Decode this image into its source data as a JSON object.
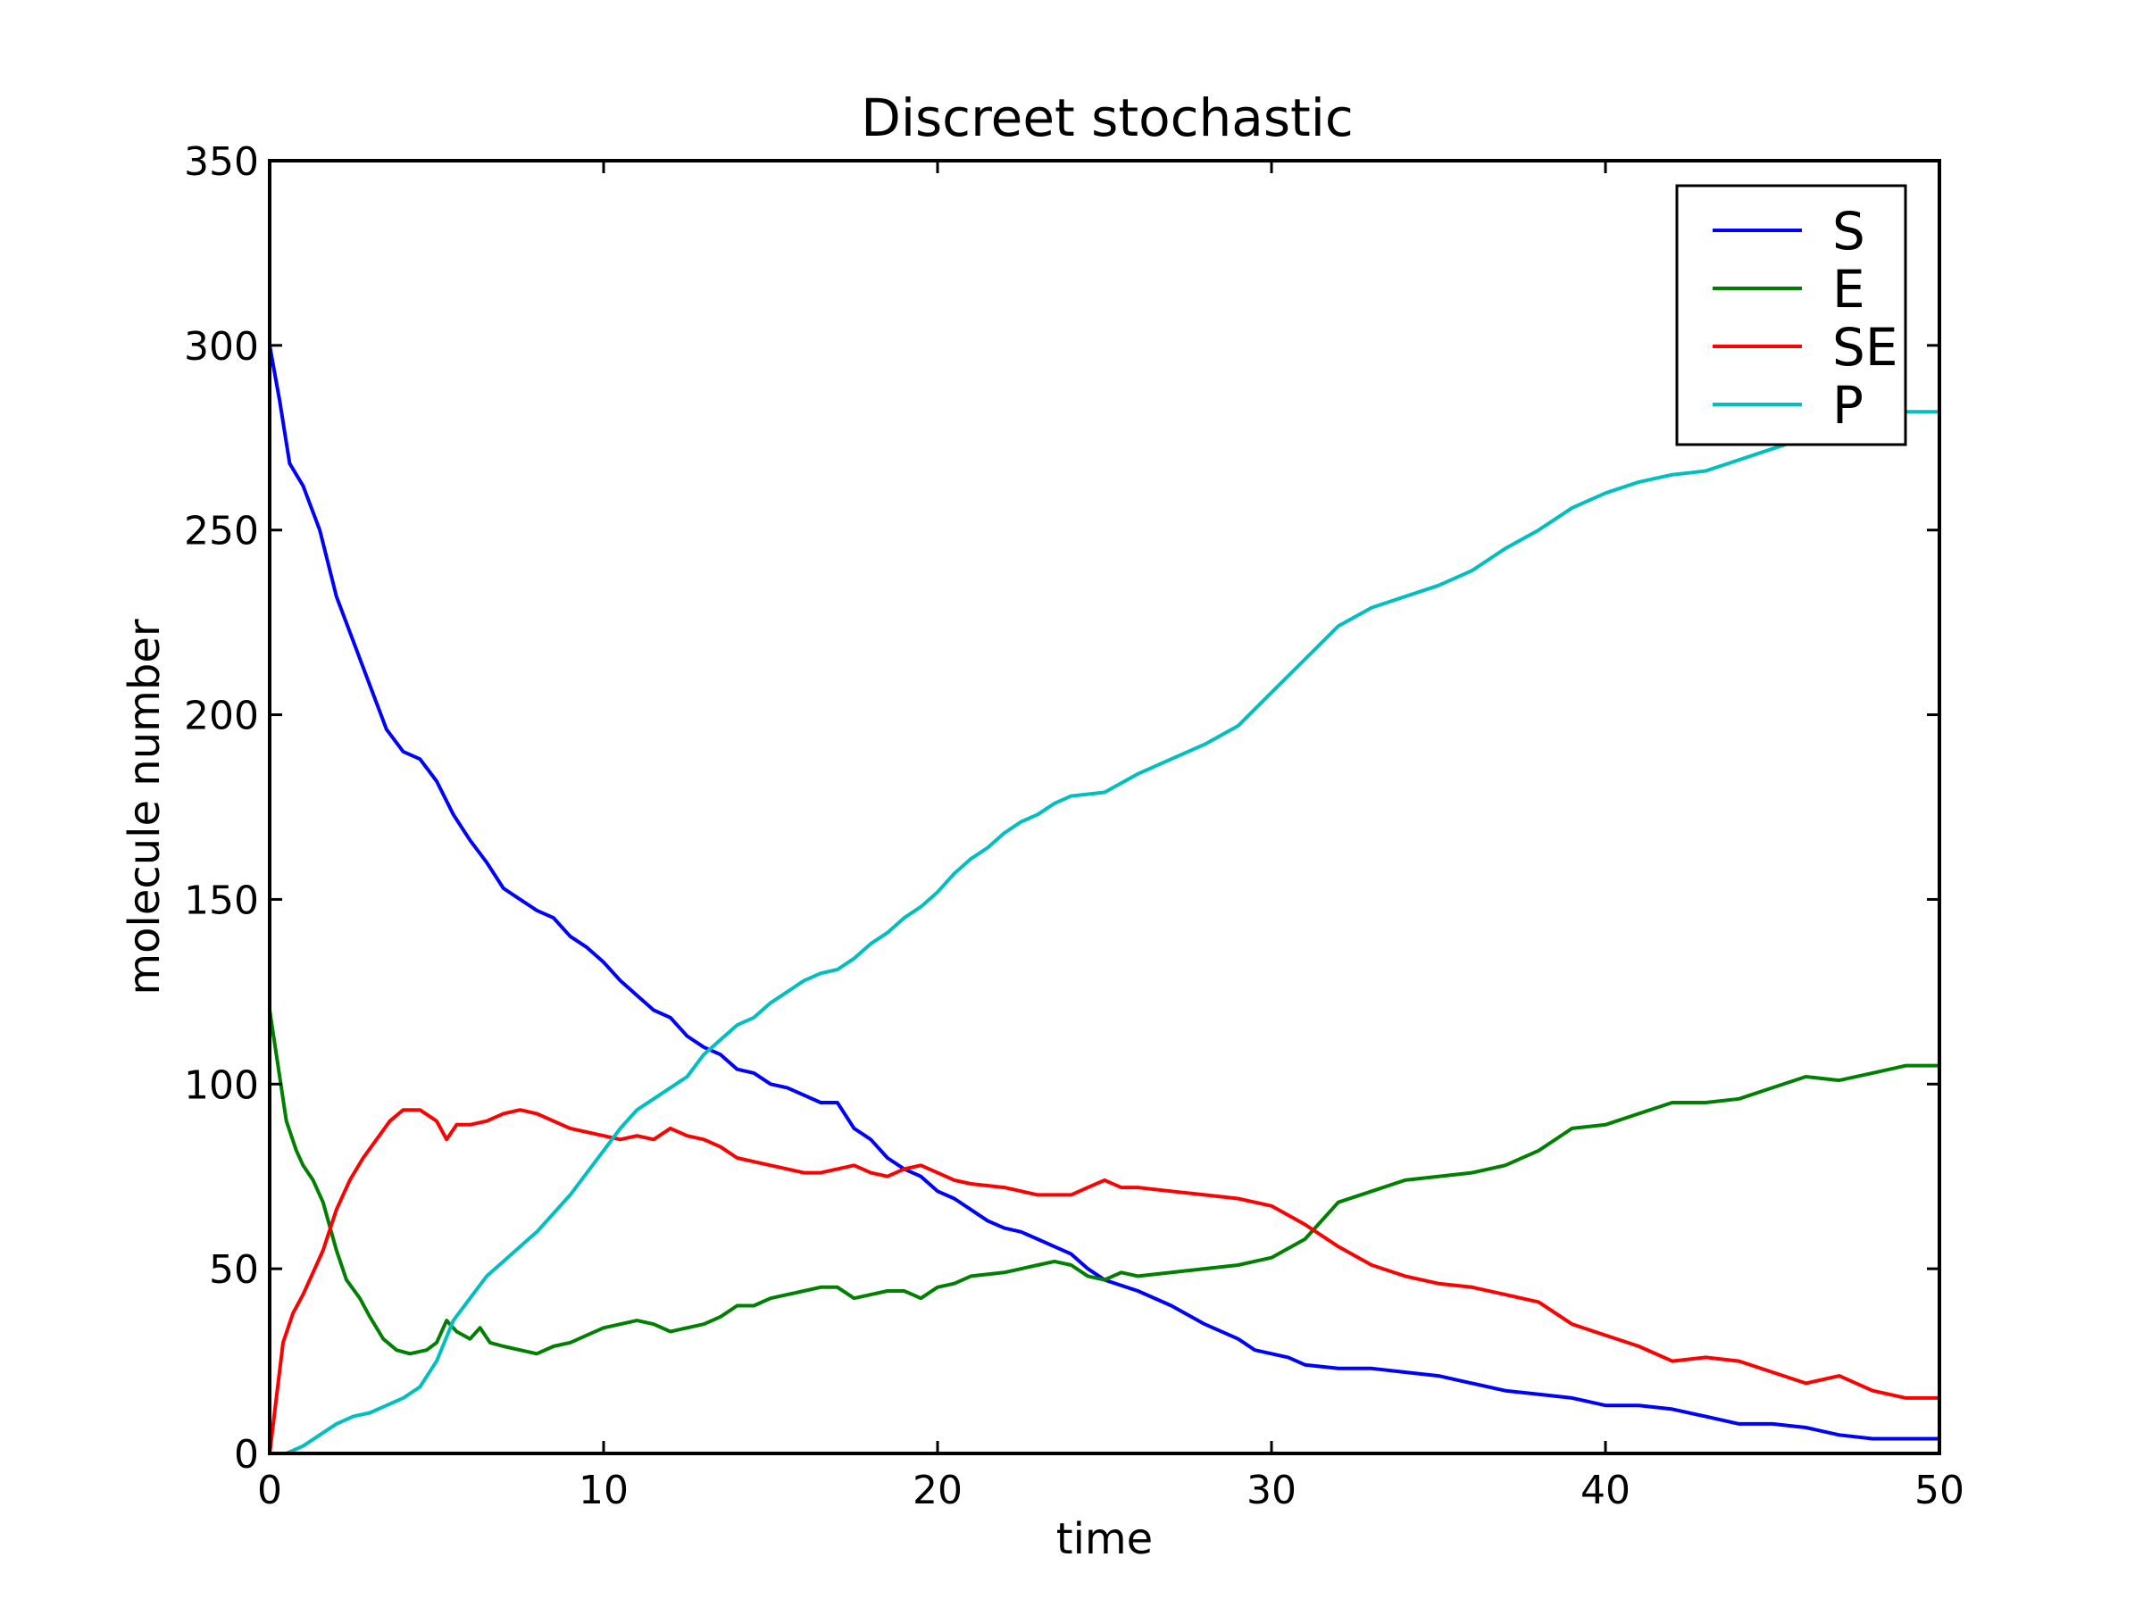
{
  "chart_data": {
    "type": "line",
    "title": "Discreet stochastic",
    "xlabel": "time",
    "ylabel": "molecule number",
    "xlim": [
      0,
      50
    ],
    "ylim": [
      0,
      350
    ],
    "xticks": [
      0,
      10,
      20,
      30,
      40,
      50
    ],
    "yticks": [
      0,
      50,
      100,
      150,
      200,
      250,
      300,
      350
    ],
    "grid": false,
    "legend_position": "top-right",
    "series": [
      {
        "name": "S",
        "color": "#0000ff",
        "points": [
          [
            0,
            300
          ],
          [
            0.3,
            285
          ],
          [
            0.6,
            268
          ],
          [
            1,
            262
          ],
          [
            1.5,
            250
          ],
          [
            2,
            232
          ],
          [
            2.5,
            220
          ],
          [
            3,
            208
          ],
          [
            3.5,
            196
          ],
          [
            4,
            190
          ],
          [
            4.5,
            188
          ],
          [
            5,
            182
          ],
          [
            5.5,
            173
          ],
          [
            6,
            166
          ],
          [
            6.5,
            160
          ],
          [
            7,
            153
          ],
          [
            7.5,
            150
          ],
          [
            8,
            147
          ],
          [
            8.5,
            145
          ],
          [
            9,
            140
          ],
          [
            9.5,
            137
          ],
          [
            10,
            133
          ],
          [
            10.5,
            128
          ],
          [
            11,
            124
          ],
          [
            11.5,
            120
          ],
          [
            12,
            118
          ],
          [
            12.5,
            113
          ],
          [
            13,
            110
          ],
          [
            13.5,
            108
          ],
          [
            14,
            104
          ],
          [
            14.5,
            103
          ],
          [
            15,
            100
          ],
          [
            15.5,
            99
          ],
          [
            16,
            97
          ],
          [
            16.5,
            95
          ],
          [
            17,
            95
          ],
          [
            17.5,
            88
          ],
          [
            18,
            85
          ],
          [
            18.5,
            80
          ],
          [
            19,
            77
          ],
          [
            19.5,
            75
          ],
          [
            20,
            71
          ],
          [
            20.5,
            69
          ],
          [
            21,
            66
          ],
          [
            21.5,
            63
          ],
          [
            22,
            61
          ],
          [
            22.5,
            60
          ],
          [
            23,
            58
          ],
          [
            23.5,
            56
          ],
          [
            24,
            54
          ],
          [
            24.5,
            50
          ],
          [
            25,
            47
          ],
          [
            26,
            44
          ],
          [
            27,
            40
          ],
          [
            28,
            35
          ],
          [
            29,
            31
          ],
          [
            29.5,
            28
          ],
          [
            30,
            27
          ],
          [
            30.5,
            26
          ],
          [
            31,
            24
          ],
          [
            32,
            23
          ],
          [
            33,
            23
          ],
          [
            34,
            22
          ],
          [
            35,
            21
          ],
          [
            36,
            19
          ],
          [
            37,
            17
          ],
          [
            38,
            16
          ],
          [
            39,
            15
          ],
          [
            40,
            13
          ],
          [
            41,
            13
          ],
          [
            42,
            12
          ],
          [
            43,
            10
          ],
          [
            44,
            8
          ],
          [
            45,
            8
          ],
          [
            46,
            7
          ],
          [
            47,
            5
          ],
          [
            48,
            4
          ],
          [
            49,
            4
          ],
          [
            50,
            4
          ]
        ]
      },
      {
        "name": "E",
        "color": "#008000",
        "points": [
          [
            0,
            120
          ],
          [
            0.2,
            108
          ],
          [
            0.5,
            90
          ],
          [
            0.8,
            82
          ],
          [
            1,
            78
          ],
          [
            1.3,
            74
          ],
          [
            1.6,
            68
          ],
          [
            2,
            55
          ],
          [
            2.3,
            47
          ],
          [
            2.7,
            42
          ],
          [
            3,
            37
          ],
          [
            3.4,
            31
          ],
          [
            3.8,
            28
          ],
          [
            4.2,
            27
          ],
          [
            4.7,
            28
          ],
          [
            5,
            30
          ],
          [
            5.3,
            36
          ],
          [
            5.6,
            33
          ],
          [
            6,
            31
          ],
          [
            6.3,
            34
          ],
          [
            6.6,
            30
          ],
          [
            7,
            29
          ],
          [
            7.5,
            28
          ],
          [
            8,
            27
          ],
          [
            8.5,
            29
          ],
          [
            9,
            30
          ],
          [
            9.5,
            32
          ],
          [
            10,
            34
          ],
          [
            10.5,
            35
          ],
          [
            11,
            36
          ],
          [
            11.5,
            35
          ],
          [
            12,
            33
          ],
          [
            12.5,
            34
          ],
          [
            13,
            35
          ],
          [
            13.5,
            37
          ],
          [
            14,
            40
          ],
          [
            14.5,
            40
          ],
          [
            15,
            42
          ],
          [
            15.5,
            43
          ],
          [
            16,
            44
          ],
          [
            16.5,
            45
          ],
          [
            17,
            45
          ],
          [
            17.5,
            42
          ],
          [
            18,
            43
          ],
          [
            18.5,
            44
          ],
          [
            19,
            44
          ],
          [
            19.5,
            42
          ],
          [
            20,
            45
          ],
          [
            20.5,
            46
          ],
          [
            21,
            48
          ],
          [
            22,
            49
          ],
          [
            23,
            51
          ],
          [
            23.5,
            52
          ],
          [
            24,
            51
          ],
          [
            24.5,
            48
          ],
          [
            25,
            47
          ],
          [
            25.5,
            49
          ],
          [
            26,
            48
          ],
          [
            27,
            49
          ],
          [
            28,
            50
          ],
          [
            29,
            51
          ],
          [
            30,
            53
          ],
          [
            31,
            58
          ],
          [
            31.5,
            63
          ],
          [
            32,
            68
          ],
          [
            33,
            71
          ],
          [
            34,
            74
          ],
          [
            35,
            75
          ],
          [
            36,
            76
          ],
          [
            37,
            78
          ],
          [
            38,
            82
          ],
          [
            39,
            88
          ],
          [
            40,
            89
          ],
          [
            41,
            92
          ],
          [
            42,
            95
          ],
          [
            43,
            95
          ],
          [
            44,
            96
          ],
          [
            45,
            99
          ],
          [
            46,
            102
          ],
          [
            47,
            101
          ],
          [
            48,
            103
          ],
          [
            49,
            105
          ],
          [
            50,
            105
          ]
        ]
      },
      {
        "name": "SE",
        "color": "#ff0000",
        "points": [
          [
            0,
            0
          ],
          [
            0.2,
            15
          ],
          [
            0.4,
            30
          ],
          [
            0.7,
            38
          ],
          [
            1,
            43
          ],
          [
            1.3,
            49
          ],
          [
            1.6,
            55
          ],
          [
            2,
            66
          ],
          [
            2.4,
            74
          ],
          [
            2.8,
            80
          ],
          [
            3.2,
            85
          ],
          [
            3.6,
            90
          ],
          [
            4,
            93
          ],
          [
            4.5,
            93
          ],
          [
            5,
            90
          ],
          [
            5.3,
            85
          ],
          [
            5.6,
            89
          ],
          [
            6,
            89
          ],
          [
            6.5,
            90
          ],
          [
            7,
            92
          ],
          [
            7.5,
            93
          ],
          [
            8,
            92
          ],
          [
            8.5,
            90
          ],
          [
            9,
            88
          ],
          [
            9.5,
            87
          ],
          [
            10,
            86
          ],
          [
            10.5,
            85
          ],
          [
            11,
            86
          ],
          [
            11.5,
            85
          ],
          [
            12,
            88
          ],
          [
            12.5,
            86
          ],
          [
            13,
            85
          ],
          [
            13.5,
            83
          ],
          [
            14,
            80
          ],
          [
            14.5,
            79
          ],
          [
            15,
            78
          ],
          [
            15.5,
            77
          ],
          [
            16,
            76
          ],
          [
            16.5,
            76
          ],
          [
            17,
            77
          ],
          [
            17.5,
            78
          ],
          [
            18,
            76
          ],
          [
            18.5,
            75
          ],
          [
            19,
            77
          ],
          [
            19.5,
            78
          ],
          [
            20,
            76
          ],
          [
            20.5,
            74
          ],
          [
            21,
            73
          ],
          [
            22,
            72
          ],
          [
            23,
            70
          ],
          [
            24,
            70
          ],
          [
            24.5,
            72
          ],
          [
            25,
            74
          ],
          [
            25.5,
            72
          ],
          [
            26,
            72
          ],
          [
            27,
            71
          ],
          [
            28,
            70
          ],
          [
            29,
            69
          ],
          [
            30,
            67
          ],
          [
            31,
            62
          ],
          [
            32,
            56
          ],
          [
            33,
            51
          ],
          [
            34,
            48
          ],
          [
            35,
            46
          ],
          [
            36,
            45
          ],
          [
            37,
            43
          ],
          [
            38,
            41
          ],
          [
            39,
            35
          ],
          [
            40,
            32
          ],
          [
            41,
            29
          ],
          [
            42,
            25
          ],
          [
            43,
            26
          ],
          [
            44,
            25
          ],
          [
            45,
            22
          ],
          [
            46,
            19
          ],
          [
            47,
            21
          ],
          [
            48,
            17
          ],
          [
            49,
            15
          ],
          [
            50,
            15
          ]
        ]
      },
      {
        "name": "P",
        "color": "#00bfbf",
        "points": [
          [
            0,
            0
          ],
          [
            0.5,
            0
          ],
          [
            1,
            2
          ],
          [
            1.5,
            5
          ],
          [
            2,
            8
          ],
          [
            2.5,
            10
          ],
          [
            3,
            11
          ],
          [
            3.5,
            13
          ],
          [
            4,
            15
          ],
          [
            4.5,
            18
          ],
          [
            5,
            25
          ],
          [
            5.5,
            36
          ],
          [
            6,
            42
          ],
          [
            6.5,
            48
          ],
          [
            7,
            52
          ],
          [
            7.5,
            56
          ],
          [
            8,
            60
          ],
          [
            8.5,
            65
          ],
          [
            9,
            70
          ],
          [
            9.5,
            76
          ],
          [
            10,
            82
          ],
          [
            10.5,
            88
          ],
          [
            11,
            93
          ],
          [
            11.5,
            96
          ],
          [
            12,
            99
          ],
          [
            12.5,
            102
          ],
          [
            13,
            108
          ],
          [
            13.5,
            112
          ],
          [
            14,
            116
          ],
          [
            14.5,
            118
          ],
          [
            15,
            122
          ],
          [
            15.5,
            125
          ],
          [
            16,
            128
          ],
          [
            16.5,
            130
          ],
          [
            17,
            131
          ],
          [
            17.5,
            134
          ],
          [
            18,
            138
          ],
          [
            18.5,
            141
          ],
          [
            19,
            145
          ],
          [
            19.5,
            148
          ],
          [
            20,
            152
          ],
          [
            20.5,
            157
          ],
          [
            21,
            161
          ],
          [
            21.5,
            164
          ],
          [
            22,
            168
          ],
          [
            22.5,
            171
          ],
          [
            23,
            173
          ],
          [
            23.5,
            176
          ],
          [
            24,
            178
          ],
          [
            25,
            179
          ],
          [
            26,
            184
          ],
          [
            27,
            188
          ],
          [
            28,
            192
          ],
          [
            29,
            197
          ],
          [
            30,
            206
          ],
          [
            31,
            215
          ],
          [
            32,
            224
          ],
          [
            33,
            229
          ],
          [
            34,
            232
          ],
          [
            35,
            235
          ],
          [
            36,
            239
          ],
          [
            37,
            245
          ],
          [
            38,
            250
          ],
          [
            39,
            256
          ],
          [
            40,
            260
          ],
          [
            41,
            263
          ],
          [
            42,
            265
          ],
          [
            43,
            266
          ],
          [
            44,
            269
          ],
          [
            45,
            272
          ],
          [
            46,
            275
          ],
          [
            47,
            279
          ],
          [
            48,
            282
          ],
          [
            49,
            282
          ],
          [
            50,
            282
          ]
        ]
      }
    ]
  }
}
